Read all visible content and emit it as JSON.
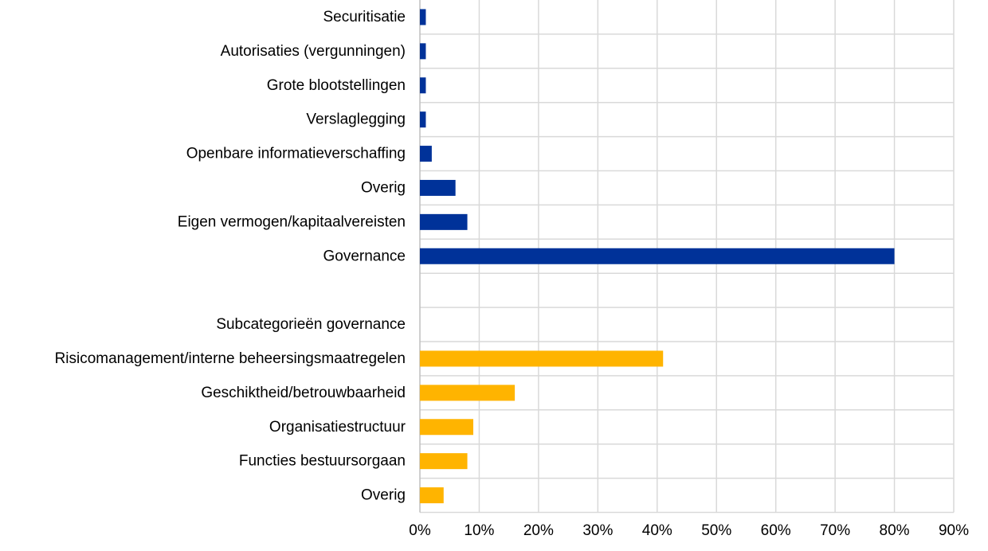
{
  "chart_data": {
    "type": "bar",
    "orientation": "horizontal",
    "title": "",
    "xlabel": "",
    "ylabel": "",
    "xlim": [
      0,
      90
    ],
    "x_ticks": [
      0,
      10,
      20,
      30,
      40,
      50,
      60,
      70,
      80,
      90
    ],
    "x_tick_labels": [
      "0%",
      "10%",
      "20%",
      "30%",
      "40%",
      "50%",
      "60%",
      "70%",
      "80%",
      "90%"
    ],
    "grid": true,
    "legend": "none",
    "colors": {
      "main": "#003299",
      "sub": "#ffb400"
    },
    "categories": [
      {
        "label": "Securitisatie",
        "value": 1,
        "group": "main"
      },
      {
        "label": "Autorisaties (vergunningen)",
        "value": 1,
        "group": "main"
      },
      {
        "label": "Grote blootstellingen",
        "value": 1,
        "group": "main"
      },
      {
        "label": "Verslaglegging",
        "value": 1,
        "group": "main"
      },
      {
        "label": "Openbare informatieverschaffing",
        "value": 2,
        "group": "main"
      },
      {
        "label": "Overig",
        "value": 6,
        "group": "main"
      },
      {
        "label": "Eigen vermogen/kapitaalvereisten",
        "value": 8,
        "group": "main"
      },
      {
        "label": "Governance",
        "value": 80,
        "group": "main"
      },
      {
        "label": "",
        "value": null,
        "group": "none"
      },
      {
        "label": "Subcategorieën governance",
        "value": null,
        "group": "none"
      },
      {
        "label": "Risicomanagement/interne beheersingsmaatregelen",
        "value": 41,
        "group": "sub"
      },
      {
        "label": "Geschiktheid/betrouwbaarheid",
        "value": 16,
        "group": "sub"
      },
      {
        "label": "Organisatiestructuur",
        "value": 9,
        "group": "sub"
      },
      {
        "label": "Functies bestuursorgaan",
        "value": 8,
        "group": "sub"
      },
      {
        "label": "Overig",
        "value": 4,
        "group": "sub"
      }
    ]
  }
}
